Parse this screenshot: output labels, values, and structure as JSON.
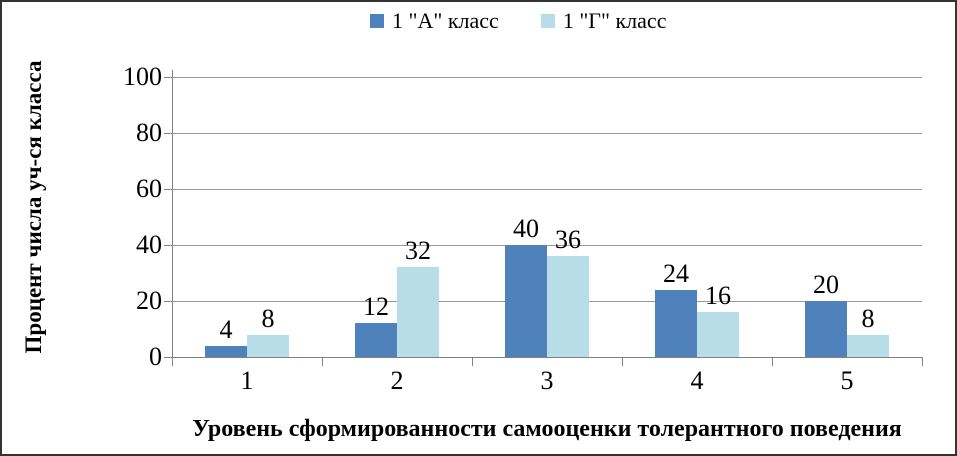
{
  "chart_data": {
    "type": "bar",
    "title": "",
    "categories": [
      "1",
      "2",
      "3",
      "4",
      "5"
    ],
    "series": [
      {
        "name": "1 \"А\" класс",
        "color": "#4F81BD",
        "values": [
          4,
          12,
          40,
          24,
          20
        ]
      },
      {
        "name": "1 \"Г\" класс",
        "color": "#B7DEE8",
        "values": [
          8,
          32,
          36,
          16,
          8
        ]
      }
    ],
    "xlabel": "Уровень сформированности самооценки толерантного поведения",
    "ylabel": "Процент числа уч-ся класса",
    "ylim": [
      0,
      100
    ],
    "yticks": [
      0,
      20,
      40,
      60,
      80,
      100
    ],
    "grid": true,
    "legend_position": "top-center",
    "colors": {
      "series_a": "#4F81BD",
      "series_g": "#B7DEE8",
      "gridline": "#999999",
      "axis": "#808080",
      "frame_border": "#333333",
      "text": "#000000"
    }
  }
}
